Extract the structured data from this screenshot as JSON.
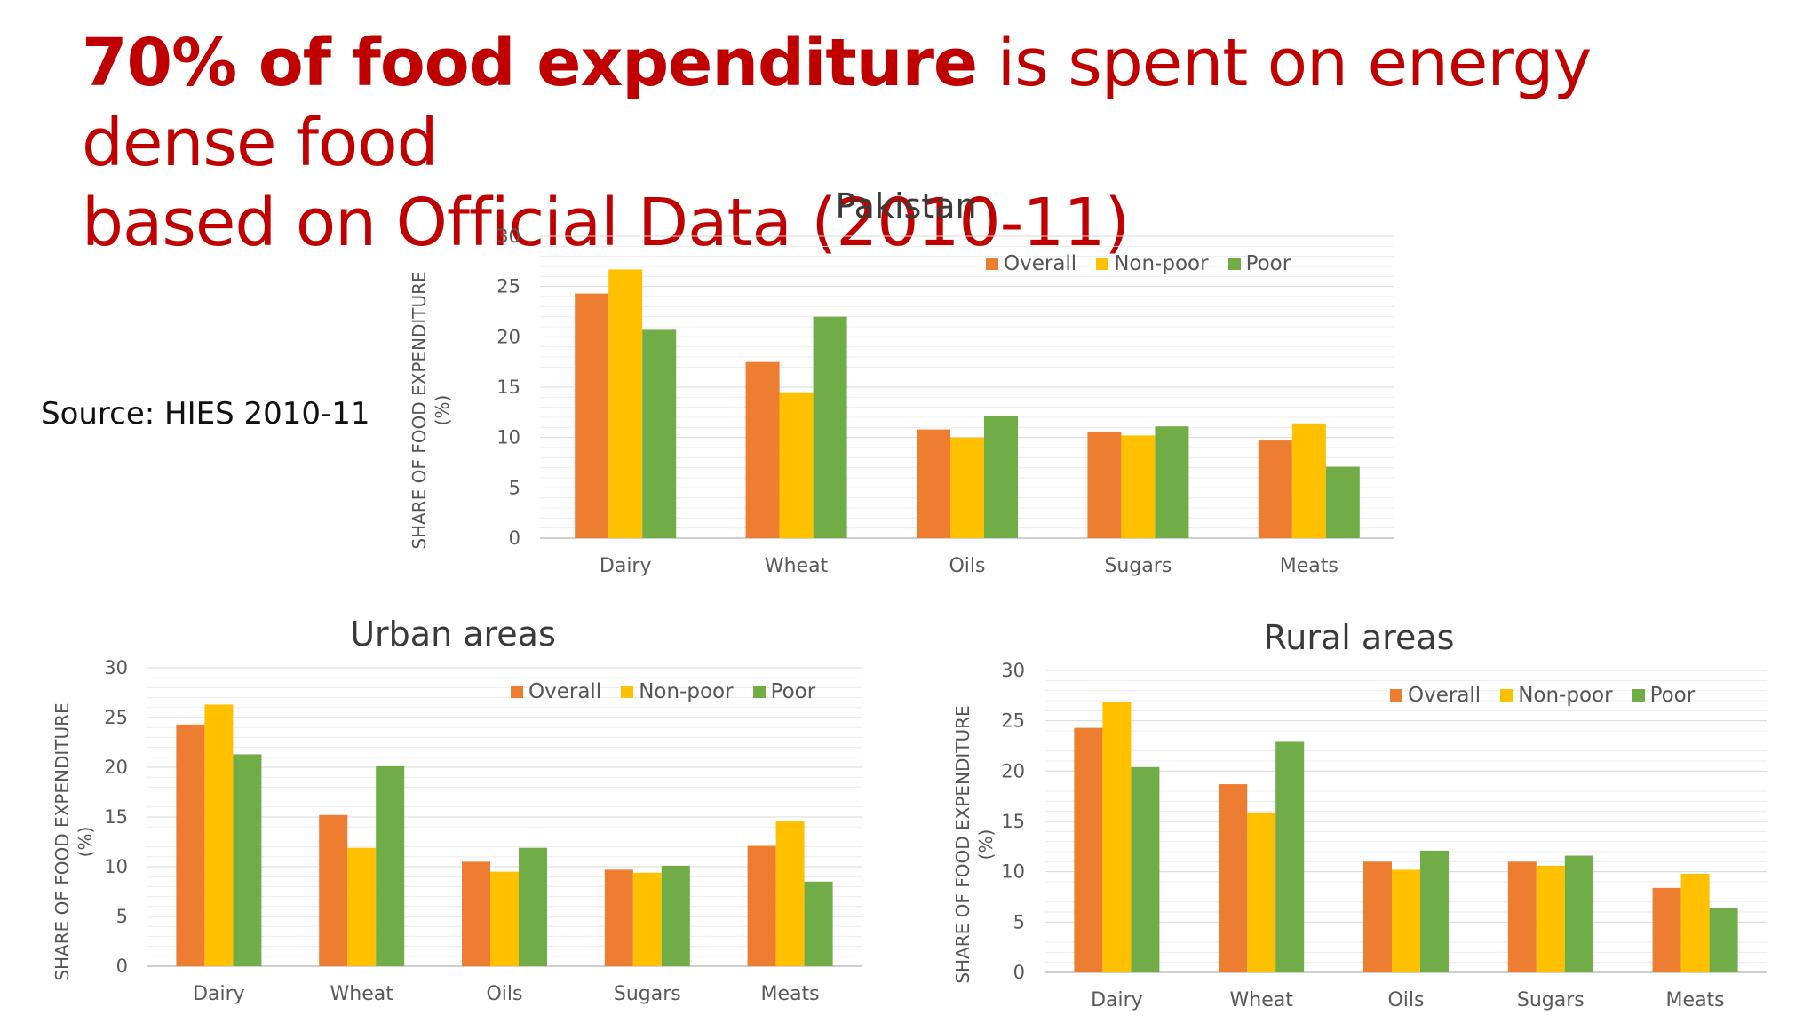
{
  "title": {
    "bold_part": "70% of food expenditure",
    "line1_rest": " is spent on energy dense food",
    "line2": "based on Official Data (2010-11)"
  },
  "source_note": "Source: HIES 2010-11",
  "colors": {
    "Overall": "#ed7d31",
    "Non-poor": "#ffc000",
    "Poor": "#70ad47",
    "title": "#c00000"
  },
  "chart_data": [
    {
      "type": "bar",
      "title": "Pakistan",
      "categories": [
        "Dairy",
        "Wheat",
        "Oils",
        "Sugars",
        "Meats"
      ],
      "series": [
        {
          "name": "Overall",
          "values": [
            24.3,
            17.5,
            10.8,
            10.5,
            9.7
          ]
        },
        {
          "name": "Non-poor",
          "values": [
            26.7,
            14.5,
            10.0,
            10.2,
            11.4
          ]
        },
        {
          "name": "Poor",
          "values": [
            20.7,
            22.0,
            12.1,
            11.1,
            7.1
          ]
        }
      ],
      "ylabel_line1": "SHARE OF FOOD EXPENDITURE",
      "ylabel_line2": "(%)",
      "ylim": [
        0,
        30
      ],
      "yticks": [
        "0",
        "5",
        "10",
        "15",
        "20",
        "25",
        "30"
      ],
      "legend_position": "top-right",
      "grid": true
    },
    {
      "type": "bar",
      "title": "Urban areas",
      "categories": [
        "Dairy",
        "Wheat",
        "Oils",
        "Sugars",
        "Meats"
      ],
      "series": [
        {
          "name": "Overall",
          "values": [
            24.3,
            15.2,
            10.5,
            9.7,
            12.1
          ]
        },
        {
          "name": "Non-poor",
          "values": [
            26.3,
            11.9,
            9.5,
            9.4,
            14.6
          ]
        },
        {
          "name": "Poor",
          "values": [
            21.3,
            20.1,
            11.9,
            10.1,
            8.5
          ]
        }
      ],
      "ylabel_line1": "SHARE OF FOOD EXPENDITURE",
      "ylabel_line2": "(%)",
      "ylim": [
        0,
        30
      ],
      "yticks": [
        "0",
        "5",
        "10",
        "15",
        "20",
        "25",
        "30"
      ],
      "legend_position": "top-right",
      "grid": true
    },
    {
      "type": "bar",
      "title": "Rural areas",
      "categories": [
        "Dairy",
        "Wheat",
        "Oils",
        "Sugars",
        "Meats"
      ],
      "series": [
        {
          "name": "Overall",
          "values": [
            24.3,
            18.7,
            11.0,
            11.0,
            8.4
          ]
        },
        {
          "name": "Non-poor",
          "values": [
            26.9,
            15.9,
            10.2,
            10.6,
            9.8
          ]
        },
        {
          "name": "Poor",
          "values": [
            20.4,
            22.9,
            12.1,
            11.6,
            6.4
          ]
        }
      ],
      "ylabel_line1": "SHARE OF FOOD EXPENDITURE",
      "ylabel_line2": "(%)",
      "ylim": [
        0,
        30
      ],
      "yticks": [
        "0",
        "5",
        "10",
        "15",
        "20",
        "25",
        "30"
      ],
      "legend_position": "top-right",
      "grid": true
    }
  ]
}
